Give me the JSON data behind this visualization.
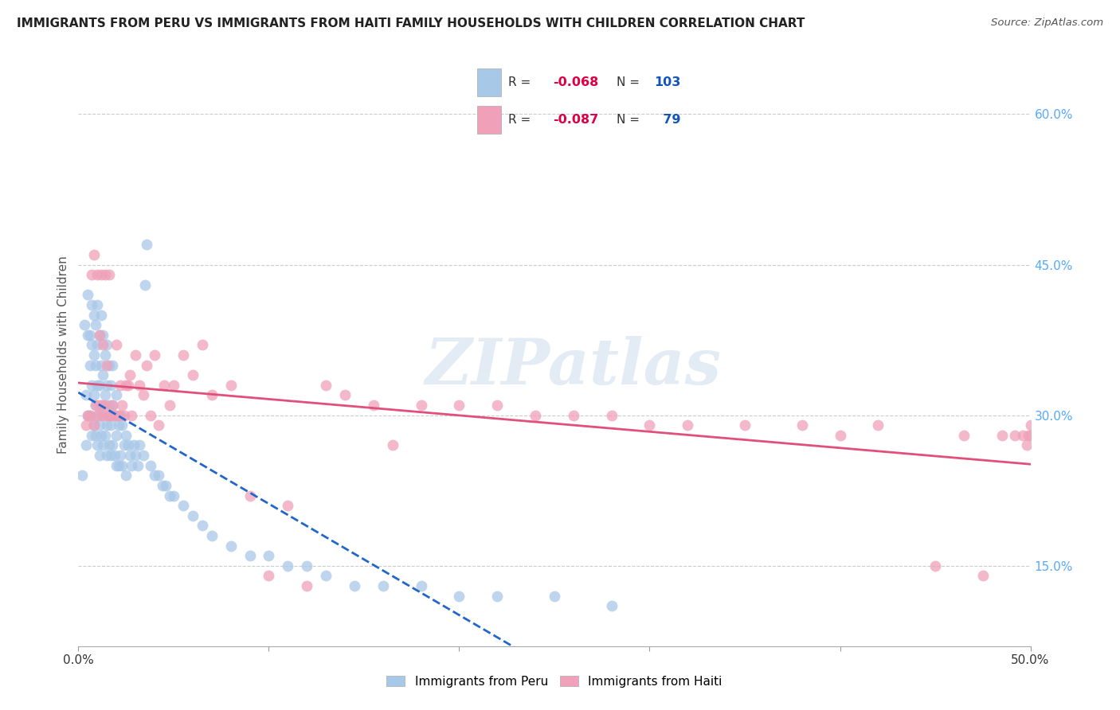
{
  "title": "IMMIGRANTS FROM PERU VS IMMIGRANTS FROM HAITI FAMILY HOUSEHOLDS WITH CHILDREN CORRELATION CHART",
  "source": "Source: ZipAtlas.com",
  "ylabel": "Family Households with Children",
  "xlim": [
    0.0,
    0.5
  ],
  "ylim": [
    0.07,
    0.65
  ],
  "xticks": [
    0.0,
    0.1,
    0.2,
    0.3,
    0.4,
    0.5
  ],
  "xticklabels": [
    "0.0%",
    "",
    "",
    "",
    "",
    "50.0%"
  ],
  "yticks_right": [
    0.15,
    0.3,
    0.45,
    0.6
  ],
  "ytick_right_labels": [
    "15.0%",
    "30.0%",
    "45.0%",
    "60.0%"
  ],
  "peru_color": "#a8c8e8",
  "haiti_color": "#f0a0b8",
  "peru_line_color": "#2266cc",
  "haiti_line_color": "#e0507a",
  "peru_R": -0.068,
  "peru_N": 103,
  "haiti_R": -0.087,
  "haiti_N": 79,
  "legend_R_color": "#dd0044",
  "legend_N_color": "#1155bb",
  "watermark": "ZIPatlas",
  "peru_scatter_x": [
    0.002,
    0.003,
    0.004,
    0.004,
    0.005,
    0.005,
    0.005,
    0.006,
    0.006,
    0.006,
    0.007,
    0.007,
    0.007,
    0.007,
    0.008,
    0.008,
    0.008,
    0.008,
    0.009,
    0.009,
    0.009,
    0.009,
    0.01,
    0.01,
    0.01,
    0.01,
    0.01,
    0.011,
    0.011,
    0.011,
    0.011,
    0.012,
    0.012,
    0.012,
    0.012,
    0.013,
    0.013,
    0.013,
    0.013,
    0.014,
    0.014,
    0.014,
    0.015,
    0.015,
    0.015,
    0.015,
    0.016,
    0.016,
    0.016,
    0.017,
    0.017,
    0.017,
    0.018,
    0.018,
    0.018,
    0.019,
    0.019,
    0.02,
    0.02,
    0.02,
    0.021,
    0.021,
    0.022,
    0.022,
    0.023,
    0.023,
    0.024,
    0.025,
    0.025,
    0.026,
    0.027,
    0.028,
    0.029,
    0.03,
    0.031,
    0.032,
    0.034,
    0.035,
    0.036,
    0.038,
    0.04,
    0.042,
    0.044,
    0.046,
    0.048,
    0.05,
    0.055,
    0.06,
    0.065,
    0.07,
    0.08,
    0.09,
    0.1,
    0.11,
    0.12,
    0.13,
    0.145,
    0.16,
    0.18,
    0.2,
    0.22,
    0.25,
    0.28
  ],
  "peru_scatter_y": [
    0.24,
    0.39,
    0.27,
    0.32,
    0.3,
    0.38,
    0.42,
    0.35,
    0.3,
    0.38,
    0.28,
    0.33,
    0.37,
    0.41,
    0.29,
    0.32,
    0.36,
    0.4,
    0.28,
    0.31,
    0.35,
    0.39,
    0.27,
    0.3,
    0.33,
    0.37,
    0.41,
    0.26,
    0.29,
    0.33,
    0.38,
    0.28,
    0.31,
    0.35,
    0.4,
    0.27,
    0.3,
    0.34,
    0.38,
    0.28,
    0.32,
    0.36,
    0.26,
    0.29,
    0.33,
    0.37,
    0.27,
    0.31,
    0.35,
    0.26,
    0.29,
    0.33,
    0.27,
    0.31,
    0.35,
    0.26,
    0.3,
    0.25,
    0.28,
    0.32,
    0.25,
    0.29,
    0.26,
    0.3,
    0.25,
    0.29,
    0.27,
    0.24,
    0.28,
    0.27,
    0.26,
    0.25,
    0.27,
    0.26,
    0.25,
    0.27,
    0.26,
    0.43,
    0.47,
    0.25,
    0.24,
    0.24,
    0.23,
    0.23,
    0.22,
    0.22,
    0.21,
    0.2,
    0.19,
    0.18,
    0.17,
    0.16,
    0.16,
    0.15,
    0.15,
    0.14,
    0.13,
    0.13,
    0.13,
    0.12,
    0.12,
    0.12,
    0.11
  ],
  "haiti_scatter_x": [
    0.004,
    0.005,
    0.006,
    0.007,
    0.008,
    0.008,
    0.009,
    0.01,
    0.01,
    0.011,
    0.011,
    0.012,
    0.012,
    0.013,
    0.013,
    0.014,
    0.014,
    0.015,
    0.015,
    0.016,
    0.016,
    0.017,
    0.018,
    0.019,
    0.02,
    0.02,
    0.021,
    0.022,
    0.023,
    0.024,
    0.025,
    0.026,
    0.027,
    0.028,
    0.03,
    0.032,
    0.034,
    0.036,
    0.038,
    0.04,
    0.042,
    0.045,
    0.048,
    0.05,
    0.055,
    0.06,
    0.065,
    0.07,
    0.08,
    0.09,
    0.1,
    0.11,
    0.12,
    0.13,
    0.14,
    0.155,
    0.165,
    0.18,
    0.2,
    0.22,
    0.24,
    0.26,
    0.28,
    0.3,
    0.32,
    0.35,
    0.38,
    0.4,
    0.42,
    0.45,
    0.465,
    0.475,
    0.485,
    0.492,
    0.496,
    0.498,
    0.499,
    0.5,
    0.5
  ],
  "haiti_scatter_y": [
    0.29,
    0.3,
    0.3,
    0.44,
    0.29,
    0.46,
    0.31,
    0.3,
    0.44,
    0.31,
    0.38,
    0.3,
    0.44,
    0.31,
    0.37,
    0.31,
    0.44,
    0.3,
    0.35,
    0.3,
    0.44,
    0.3,
    0.31,
    0.3,
    0.3,
    0.37,
    0.3,
    0.33,
    0.31,
    0.3,
    0.33,
    0.33,
    0.34,
    0.3,
    0.36,
    0.33,
    0.32,
    0.35,
    0.3,
    0.36,
    0.29,
    0.33,
    0.31,
    0.33,
    0.36,
    0.34,
    0.37,
    0.32,
    0.33,
    0.22,
    0.14,
    0.21,
    0.13,
    0.33,
    0.32,
    0.31,
    0.27,
    0.31,
    0.31,
    0.31,
    0.3,
    0.3,
    0.3,
    0.29,
    0.29,
    0.29,
    0.29,
    0.28,
    0.29,
    0.15,
    0.28,
    0.14,
    0.28,
    0.28,
    0.28,
    0.27,
    0.28,
    0.29,
    0.28
  ]
}
